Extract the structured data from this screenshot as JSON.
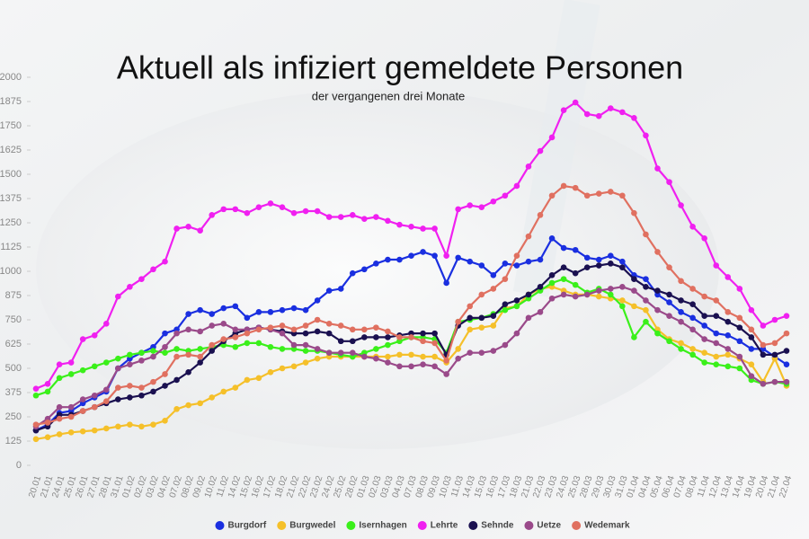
{
  "chart_data": {
    "type": "line",
    "title": "Aktuell als infiziert gemeldete Personen",
    "subtitle": "der vergangenen drei Monate",
    "categories": [
      "20.01",
      "21.01",
      "24.01",
      "25.01",
      "26.01",
      "27.01",
      "28.01",
      "31.01",
      "01.02",
      "02.02",
      "03.02",
      "04.02",
      "07.02",
      "08.02",
      "09.02",
      "10.02",
      "11.02",
      "14.02",
      "15.02",
      "16.02",
      "17.02",
      "18.02",
      "21.02",
      "22.02",
      "23.02",
      "24.02",
      "25.02",
      "28.02",
      "01.03",
      "02.03",
      "03.03",
      "04.03",
      "07.03",
      "08.03",
      "09.03",
      "10.03",
      "11.03",
      "14.03",
      "15.03",
      "16.03",
      "17.03",
      "18.03",
      "21.03",
      "22.03",
      "23.03",
      "24.03",
      "25.03",
      "28.03",
      "29.03",
      "30.03",
      "31.03",
      "01.04",
      "04.04",
      "05.04",
      "06.04",
      "07.04",
      "08.04",
      "11.04",
      "12.04",
      "13.04",
      "14.04",
      "19.04",
      "20.04",
      "21.04",
      "22.04"
    ],
    "series": [
      {
        "name": "Burgdorf",
        "color": "#1a2fe0",
        "values": [
          180,
          210,
          270,
          280,
          320,
          350,
          380,
          500,
          550,
          580,
          610,
          680,
          700,
          780,
          800,
          780,
          810,
          820,
          760,
          790,
          790,
          800,
          810,
          800,
          850,
          900,
          910,
          990,
          1010,
          1040,
          1060,
          1060,
          1080,
          1100,
          1080,
          940,
          1070,
          1050,
          1030,
          980,
          1040,
          1030,
          1050,
          1060,
          1170,
          1120,
          1110,
          1070,
          1060,
          1080,
          1050,
          980,
          960,
          880,
          840,
          790,
          760,
          720,
          680,
          670,
          640,
          600,
          600,
          560,
          520
        ]
      },
      {
        "name": "Burgwedel",
        "color": "#f5c02a",
        "values": [
          135,
          145,
          160,
          170,
          175,
          180,
          190,
          200,
          210,
          200,
          210,
          230,
          290,
          310,
          320,
          350,
          380,
          400,
          440,
          450,
          480,
          500,
          510,
          530,
          550,
          560,
          560,
          560,
          560,
          560,
          560,
          570,
          570,
          560,
          560,
          530,
          600,
          700,
          710,
          720,
          810,
          820,
          880,
          910,
          920,
          900,
          880,
          880,
          870,
          860,
          850,
          820,
          800,
          700,
          650,
          630,
          600,
          580,
          560,
          570,
          550,
          520,
          430,
          550,
          410
        ]
      },
      {
        "name": "Isernhagen",
        "color": "#3af01a",
        "values": [
          360,
          380,
          450,
          470,
          490,
          510,
          530,
          550,
          570,
          580,
          590,
          580,
          600,
          590,
          600,
          610,
          620,
          610,
          630,
          630,
          610,
          600,
          600,
          590,
          590,
          580,
          570,
          560,
          580,
          600,
          620,
          640,
          660,
          660,
          650,
          580,
          740,
          750,
          760,
          780,
          800,
          820,
          860,
          900,
          940,
          960,
          930,
          890,
          910,
          880,
          820,
          660,
          740,
          680,
          640,
          600,
          570,
          530,
          520,
          510,
          500,
          440,
          420,
          430,
          420
        ]
      },
      {
        "name": "Lehrte",
        "color": "#f020f0",
        "values": [
          395,
          420,
          520,
          530,
          650,
          670,
          730,
          870,
          920,
          960,
          1010,
          1050,
          1220,
          1230,
          1210,
          1290,
          1320,
          1320,
          1300,
          1330,
          1350,
          1330,
          1300,
          1310,
          1310,
          1280,
          1280,
          1290,
          1270,
          1280,
          1260,
          1240,
          1230,
          1220,
          1220,
          1080,
          1320,
          1340,
          1330,
          1360,
          1390,
          1440,
          1540,
          1620,
          1690,
          1830,
          1870,
          1810,
          1800,
          1840,
          1820,
          1790,
          1700,
          1530,
          1460,
          1340,
          1230,
          1170,
          1030,
          970,
          910,
          800,
          720,
          750,
          770
        ]
      },
      {
        "name": "Sehnde",
        "color": "#1a1050",
        "values": [
          180,
          200,
          260,
          260,
          280,
          300,
          320,
          340,
          350,
          360,
          380,
          410,
          440,
          480,
          530,
          590,
          640,
          680,
          700,
          710,
          700,
          690,
          680,
          680,
          690,
          680,
          640,
          640,
          660,
          660,
          660,
          670,
          680,
          680,
          680,
          570,
          720,
          760,
          760,
          770,
          830,
          850,
          880,
          920,
          980,
          1020,
          990,
          1020,
          1030,
          1040,
          1020,
          960,
          920,
          900,
          880,
          850,
          830,
          770,
          770,
          740,
          710,
          660,
          570,
          570,
          590
        ]
      },
      {
        "name": "Uetze",
        "color": "#9a4a8a",
        "values": [
          200,
          240,
          300,
          300,
          340,
          360,
          390,
          500,
          520,
          540,
          560,
          610,
          680,
          700,
          690,
          720,
          730,
          700,
          700,
          710,
          700,
          680,
          620,
          620,
          600,
          580,
          580,
          580,
          560,
          550,
          530,
          510,
          510,
          520,
          510,
          470,
          550,
          580,
          580,
          590,
          620,
          680,
          760,
          790,
          860,
          880,
          870,
          880,
          900,
          910,
          920,
          900,
          850,
          800,
          770,
          740,
          700,
          650,
          630,
          600,
          560,
          460,
          420,
          430,
          430
        ]
      },
      {
        "name": "Wedemark",
        "color": "#e07060",
        "values": [
          210,
          220,
          240,
          250,
          280,
          300,
          330,
          400,
          410,
          400,
          430,
          470,
          560,
          570,
          560,
          620,
          650,
          660,
          680,
          700,
          710,
          720,
          700,
          720,
          750,
          730,
          720,
          700,
          700,
          710,
          690,
          660,
          660,
          640,
          630,
          540,
          740,
          820,
          880,
          910,
          960,
          1080,
          1180,
          1290,
          1390,
          1440,
          1430,
          1390,
          1400,
          1410,
          1390,
          1300,
          1190,
          1100,
          1020,
          950,
          910,
          870,
          850,
          790,
          760,
          700,
          620,
          630,
          680
        ]
      }
    ],
    "ylim": [
      0,
      2000
    ],
    "yticks": [
      0,
      125,
      250,
      375,
      500,
      625,
      750,
      875,
      1000,
      1125,
      1250,
      1375,
      1500,
      1625,
      1750,
      1875,
      2000
    ],
    "legend": "bottom"
  }
}
